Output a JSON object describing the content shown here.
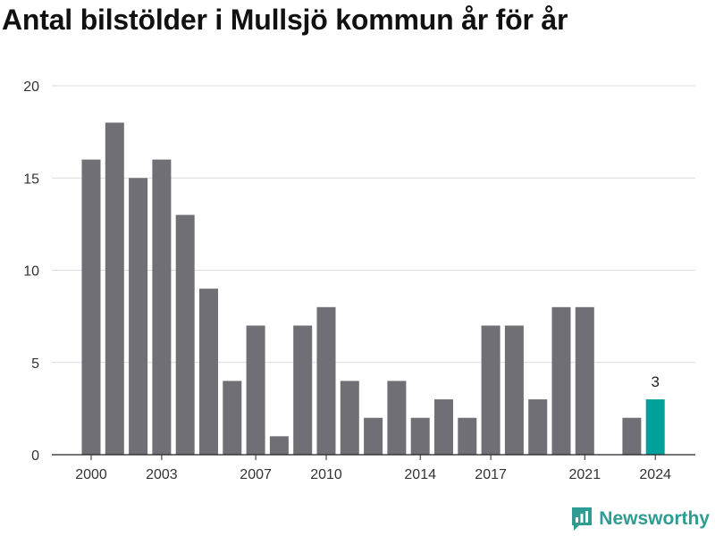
{
  "title": "Antal bilstölder i Mullsjö kommun år för år",
  "brand": {
    "name": "Newsworthy",
    "icon": "newsworthy-logo-icon",
    "color": "#2e9c93"
  },
  "colors": {
    "bar": "#706f75",
    "highlight": "#00a19a",
    "grid": "#dcdcdc",
    "text": "#333333"
  },
  "chart_data": {
    "type": "bar",
    "title": "Antal bilstölder i Mullsjö kommun år för år",
    "xlabel": "",
    "ylabel": "",
    "categories": [
      "2000",
      "2001",
      "2002",
      "2003",
      "2004",
      "2005",
      "2006",
      "2007",
      "2008",
      "2009",
      "2010",
      "2011",
      "2012",
      "2013",
      "2014",
      "2015",
      "2016",
      "2017",
      "2018",
      "2019",
      "2020",
      "2021",
      "2022",
      "2023",
      "2024"
    ],
    "values": [
      16,
      18,
      15,
      16,
      13,
      9,
      4,
      7,
      1,
      7,
      8,
      4,
      2,
      4,
      2,
      3,
      2,
      7,
      7,
      3,
      8,
      8,
      null,
      2,
      3
    ],
    "highlight": "2024",
    "data_labels": [
      {
        "category": "2024",
        "text": "3"
      }
    ],
    "x_ticks": [
      "2000",
      "2003",
      "2007",
      "2010",
      "2014",
      "2017",
      "2021",
      "2024"
    ],
    "y_ticks": [
      0,
      5,
      10,
      15,
      20
    ],
    "ylim": [
      0,
      20
    ],
    "grid": true,
    "legend": "none"
  }
}
